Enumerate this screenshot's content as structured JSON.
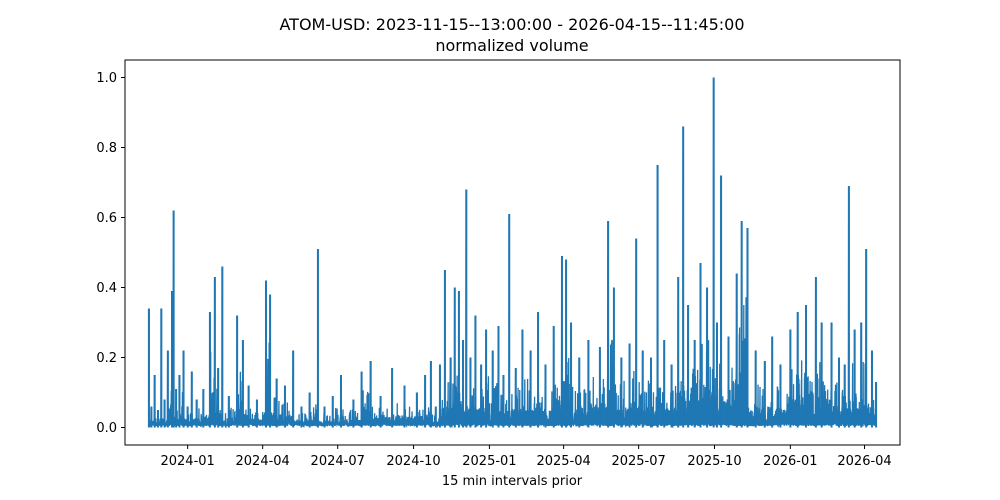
{
  "chart_data": {
    "type": "line",
    "title": "ATOM-USD: 2023-11-15--13:00:00 - 2026-04-15--11:45:00",
    "subtitle": "normalized volume",
    "xlabel": "15 min intervals prior",
    "ylabel": "",
    "x_range": [
      "2023-11-15",
      "2026-04-15"
    ],
    "xlim": [
      "2023-10-17",
      "2026-05-14"
    ],
    "ylim": [
      -0.05,
      1.05
    ],
    "x_ticks": [
      {
        "label": "2024-01",
        "date": "2024-01-01"
      },
      {
        "label": "2024-04",
        "date": "2024-04-01"
      },
      {
        "label": "2024-07",
        "date": "2024-07-01"
      },
      {
        "label": "2024-10",
        "date": "2024-10-01"
      },
      {
        "label": "2025-01",
        "date": "2025-01-01"
      },
      {
        "label": "2025-04",
        "date": "2025-04-01"
      },
      {
        "label": "2025-07",
        "date": "2025-07-01"
      },
      {
        "label": "2025-10",
        "date": "2025-10-01"
      },
      {
        "label": "2026-01",
        "date": "2026-01-01"
      },
      {
        "label": "2026-04",
        "date": "2026-04-01"
      }
    ],
    "y_ticks": [
      {
        "label": "0.0",
        "value": 0.0
      },
      {
        "label": "0.2",
        "value": 0.2
      },
      {
        "label": "0.4",
        "value": 0.4
      },
      {
        "label": "0.6",
        "value": 0.6
      },
      {
        "label": "0.8",
        "value": 0.8
      },
      {
        "label": "1.0",
        "value": 1.0
      }
    ],
    "grid": false,
    "color": "#1f77b4",
    "series": [
      {
        "name": "",
        "points": [
          [
            "2023-11-15",
            0.34
          ],
          [
            "2023-11-18",
            0.06
          ],
          [
            "2023-11-22",
            0.15
          ],
          [
            "2023-11-26",
            0.05
          ],
          [
            "2023-11-30",
            0.34
          ],
          [
            "2023-12-04",
            0.08
          ],
          [
            "2023-12-08",
            0.22
          ],
          [
            "2023-12-13",
            0.39
          ],
          [
            "2023-12-15",
            0.62
          ],
          [
            "2023-12-18",
            0.11
          ],
          [
            "2023-12-22",
            0.15
          ],
          [
            "2023-12-27",
            0.22
          ],
          [
            "2024-01-01",
            0.06
          ],
          [
            "2024-01-06",
            0.16
          ],
          [
            "2024-01-12",
            0.08
          ],
          [
            "2024-01-20",
            0.11
          ],
          [
            "2024-01-28",
            0.33
          ],
          [
            "2024-02-03",
            0.43
          ],
          [
            "2024-02-07",
            0.17
          ],
          [
            "2024-02-12",
            0.46
          ],
          [
            "2024-02-20",
            0.09
          ],
          [
            "2024-03-01",
            0.32
          ],
          [
            "2024-03-08",
            0.25
          ],
          [
            "2024-03-15",
            0.12
          ],
          [
            "2024-03-25",
            0.08
          ],
          [
            "2024-04-05",
            0.42
          ],
          [
            "2024-04-10",
            0.38
          ],
          [
            "2024-04-18",
            0.14
          ],
          [
            "2024-04-28",
            0.12
          ],
          [
            "2024-05-08",
            0.22
          ],
          [
            "2024-05-18",
            0.06
          ],
          [
            "2024-05-28",
            0.1
          ],
          [
            "2024-06-07",
            0.51
          ],
          [
            "2024-06-15",
            0.06
          ],
          [
            "2024-06-25",
            0.09
          ],
          [
            "2024-07-05",
            0.15
          ],
          [
            "2024-07-20",
            0.08
          ],
          [
            "2024-07-30",
            0.16
          ],
          [
            "2024-08-10",
            0.19
          ],
          [
            "2024-08-22",
            0.09
          ],
          [
            "2024-09-05",
            0.17
          ],
          [
            "2024-09-20",
            0.12
          ],
          [
            "2024-10-05",
            0.1
          ],
          [
            "2024-10-15",
            0.15
          ],
          [
            "2024-10-22",
            0.19
          ],
          [
            "2024-10-28",
            0.06
          ],
          [
            "2024-11-02",
            0.18
          ],
          [
            "2024-11-08",
            0.45
          ],
          [
            "2024-11-15",
            0.2
          ],
          [
            "2024-11-20",
            0.4
          ],
          [
            "2024-11-25",
            0.39
          ],
          [
            "2024-11-30",
            0.25
          ],
          [
            "2024-12-04",
            0.68
          ],
          [
            "2024-12-09",
            0.2
          ],
          [
            "2024-12-15",
            0.32
          ],
          [
            "2024-12-22",
            0.18
          ],
          [
            "2024-12-28",
            0.28
          ],
          [
            "2025-01-05",
            0.22
          ],
          [
            "2025-01-12",
            0.29
          ],
          [
            "2025-01-18",
            0.15
          ],
          [
            "2025-01-25",
            0.61
          ],
          [
            "2025-02-02",
            0.17
          ],
          [
            "2025-02-10",
            0.28
          ],
          [
            "2025-02-20",
            0.22
          ],
          [
            "2025-03-01",
            0.33
          ],
          [
            "2025-03-10",
            0.18
          ],
          [
            "2025-03-20",
            0.29
          ],
          [
            "2025-03-30",
            0.49
          ],
          [
            "2025-04-04",
            0.48
          ],
          [
            "2025-04-10",
            0.3
          ],
          [
            "2025-04-20",
            0.2
          ],
          [
            "2025-05-01",
            0.25
          ],
          [
            "2025-05-15",
            0.23
          ],
          [
            "2025-05-25",
            0.59
          ],
          [
            "2025-06-01",
            0.4
          ],
          [
            "2025-06-10",
            0.2
          ],
          [
            "2025-06-20",
            0.24
          ],
          [
            "2025-06-28",
            0.54
          ],
          [
            "2025-07-06",
            0.22
          ],
          [
            "2025-07-16",
            0.2
          ],
          [
            "2025-07-24",
            0.75
          ],
          [
            "2025-08-01",
            0.25
          ],
          [
            "2025-08-10",
            0.18
          ],
          [
            "2025-08-18",
            0.43
          ],
          [
            "2025-08-24",
            0.86
          ],
          [
            "2025-08-30",
            0.35
          ],
          [
            "2025-09-07",
            0.25
          ],
          [
            "2025-09-14",
            0.47
          ],
          [
            "2025-09-22",
            0.4
          ],
          [
            "2025-09-30",
            1.0
          ],
          [
            "2025-10-04",
            0.3
          ],
          [
            "2025-10-09",
            0.72
          ],
          [
            "2025-10-18",
            0.26
          ],
          [
            "2025-10-28",
            0.44
          ],
          [
            "2025-11-03",
            0.59
          ],
          [
            "2025-11-10",
            0.57
          ],
          [
            "2025-11-20",
            0.22
          ],
          [
            "2025-12-01",
            0.19
          ],
          [
            "2025-12-10",
            0.26
          ],
          [
            "2025-12-20",
            0.18
          ],
          [
            "2026-01-01",
            0.28
          ],
          [
            "2026-01-10",
            0.33
          ],
          [
            "2026-01-20",
            0.35
          ],
          [
            "2026-02-01",
            0.43
          ],
          [
            "2026-02-08",
            0.3
          ],
          [
            "2026-02-20",
            0.3
          ],
          [
            "2026-03-01",
            0.2
          ],
          [
            "2026-03-08",
            0.18
          ],
          [
            "2026-03-13",
            0.69
          ],
          [
            "2026-03-20",
            0.28
          ],
          [
            "2026-03-28",
            0.3
          ],
          [
            "2026-04-03",
            0.51
          ],
          [
            "2026-04-10",
            0.22
          ],
          [
            "2026-04-15",
            0.13
          ]
        ]
      }
    ]
  }
}
